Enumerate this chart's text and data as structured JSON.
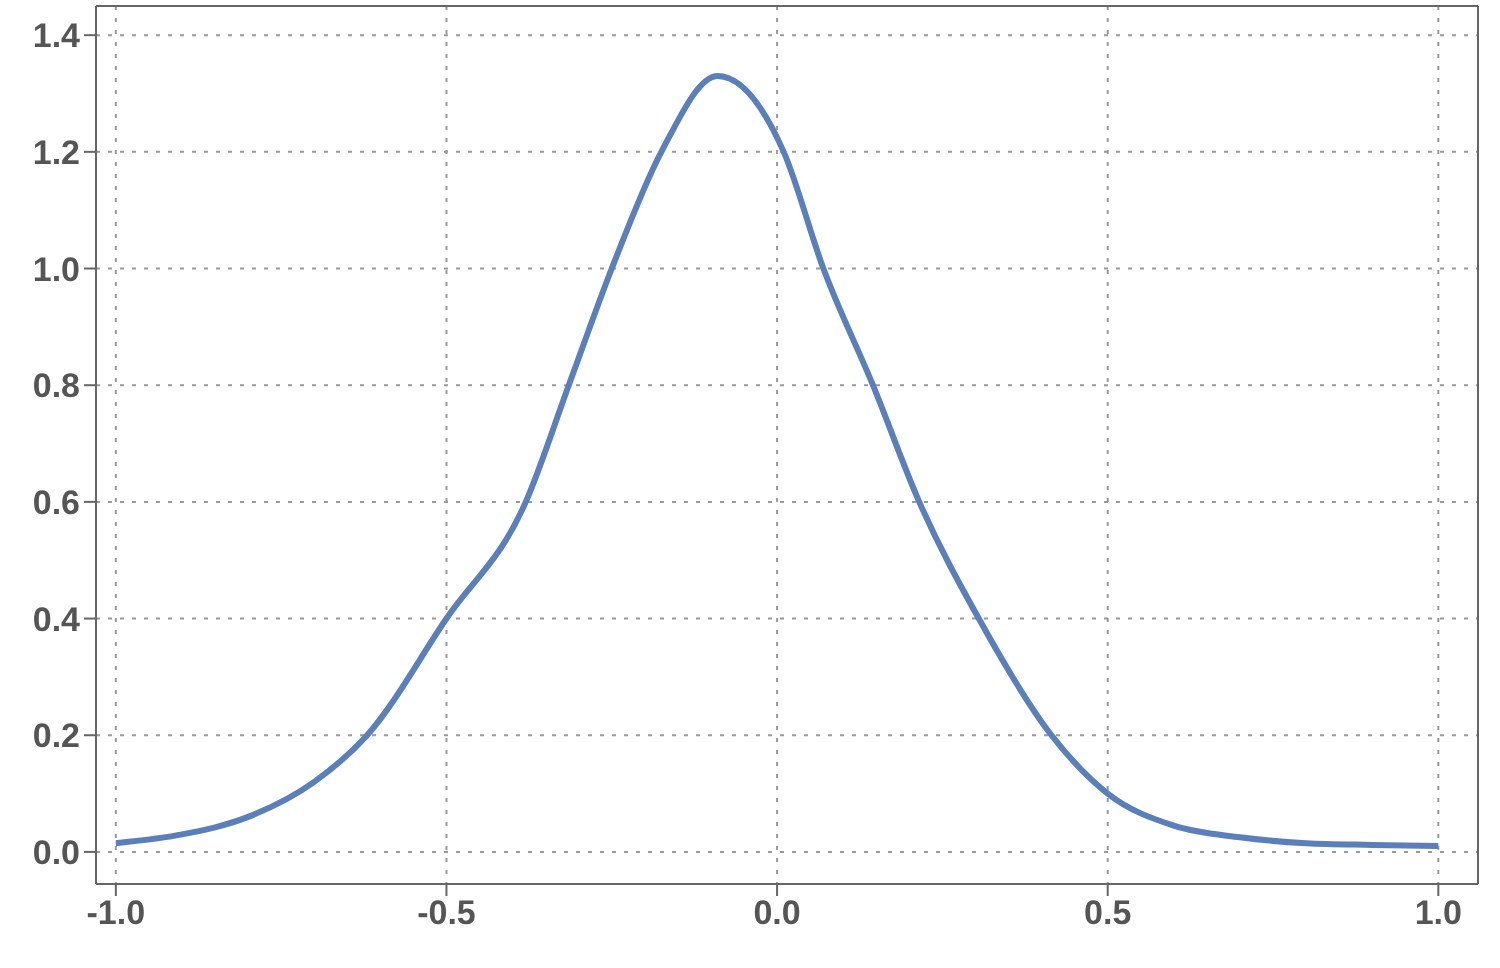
{
  "chart_data": {
    "type": "line",
    "xlim": [
      -1.03,
      1.06
    ],
    "ylim": [
      -0.055,
      1.45
    ],
    "xticks": [
      {
        "value": -1,
        "label": "-1.0"
      },
      {
        "value": -0.5,
        "label": "-0.5"
      },
      {
        "value": 0,
        "label": "0.0"
      },
      {
        "value": 0.5,
        "label": "0.5"
      },
      {
        "value": 1,
        "label": "1.0"
      }
    ],
    "yticks": [
      {
        "value": 0,
        "label": "0.0"
      },
      {
        "value": 0.2,
        "label": "0.2"
      },
      {
        "value": 0.4,
        "label": "0.4"
      },
      {
        "value": 0.6,
        "label": "0.6"
      },
      {
        "value": 0.8,
        "label": "0.8"
      },
      {
        "value": 1,
        "label": "1.0"
      },
      {
        "value": 1.2,
        "label": "1.2"
      },
      {
        "value": 1.4,
        "label": "1.4"
      }
    ],
    "grid": true,
    "marker": "none",
    "line_style": "solid",
    "series": [
      {
        "color": "#5a7fbb",
        "x": [
          -1,
          -0.9,
          -0.8,
          -0.7,
          -0.62,
          -0.5,
          -0.38,
          -0.315,
          -0.25,
          -0.175,
          -0.09,
          0.01,
          0.07,
          0.145,
          0.215,
          0.305,
          0.415,
          0.5,
          0.6,
          0.7,
          0.8,
          0.9,
          1
        ],
        "values": [
          0.015,
          0.03,
          0.06,
          0.12,
          0.2,
          0.4,
          0.6,
          0.8,
          1.0,
          1.2,
          1.33,
          1.2,
          1.0,
          0.8,
          0.6,
          0.4,
          0.2,
          0.1,
          0.045,
          0.025,
          0.015,
          0.012,
          0.01
        ]
      }
    ]
  }
}
